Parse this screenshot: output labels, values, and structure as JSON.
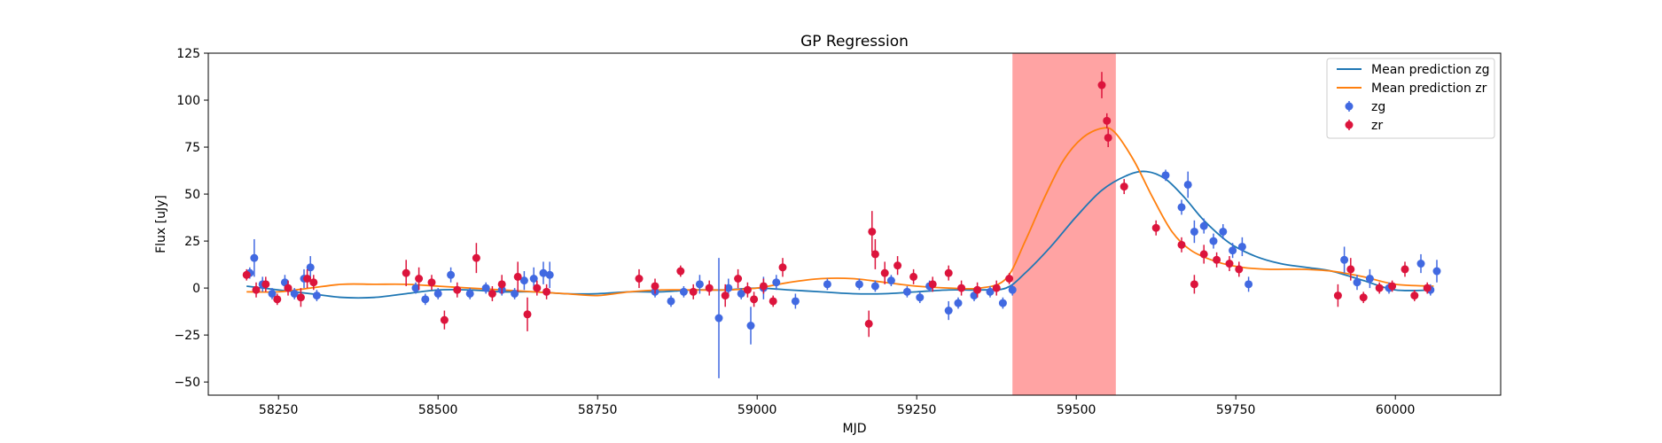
{
  "chart_data": {
    "type": "scatter",
    "title": "GP Regression",
    "xlabel": "MJD",
    "ylabel": "Flux [uJy]",
    "xlim": [
      58140,
      60165
    ],
    "ylim": [
      -57,
      125
    ],
    "xticks": [
      58250,
      58500,
      58750,
      59000,
      59250,
      59500,
      59750,
      60000
    ],
    "yticks": [
      -50,
      -25,
      0,
      25,
      50,
      75,
      100,
      125
    ],
    "grid": false,
    "legend_position": "top-right",
    "highlight_span": {
      "x0": 59400,
      "x1": 59562,
      "color": "#ff6666"
    },
    "lines": [
      {
        "name": "Mean prediction zg",
        "color": "#1f77b4",
        "x": [
          58200,
          58250,
          58300,
          58350,
          58400,
          58450,
          58500,
          58550,
          58600,
          58650,
          58700,
          58750,
          58800,
          58850,
          58900,
          58950,
          59000,
          59050,
          59100,
          59150,
          59200,
          59250,
          59300,
          59350,
          59390,
          59420,
          59460,
          59500,
          59540,
          59580,
          59610,
          59640,
          59670,
          59700,
          59740,
          59780,
          59820,
          59860,
          59900,
          59950,
          60000,
          60060
        ],
        "y": [
          1,
          -1,
          -3,
          -5,
          -5,
          -3,
          -1,
          -1,
          -2,
          -2,
          -3,
          -3,
          -2,
          -2,
          -1,
          -1,
          0,
          -1,
          -2,
          -3,
          -3,
          -2,
          -1,
          -1,
          0,
          8,
          22,
          38,
          52,
          60,
          62,
          58,
          48,
          36,
          24,
          17,
          13,
          11,
          9,
          4,
          -1,
          -1
        ]
      },
      {
        "name": "Mean prediction zr",
        "color": "#ff7f0e",
        "x": [
          58200,
          58250,
          58300,
          58350,
          58400,
          58450,
          58500,
          58550,
          58600,
          58650,
          58700,
          58750,
          58800,
          58850,
          58900,
          58950,
          59000,
          59050,
          59100,
          59150,
          59200,
          59250,
          59300,
          59350,
          59390,
          59420,
          59450,
          59480,
          59510,
          59540,
          59560,
          59590,
          59620,
          59650,
          59680,
          59720,
          59760,
          59800,
          59850,
          59900,
          59950,
          60000,
          60060
        ],
        "y": [
          -2,
          -2,
          0,
          2,
          2,
          2,
          1,
          0,
          -1,
          -2,
          -3,
          -4,
          -2,
          -1,
          -1,
          -1,
          0,
          3,
          5,
          5,
          3,
          1,
          0,
          0,
          5,
          25,
          48,
          68,
          80,
          85,
          83,
          68,
          48,
          30,
          20,
          14,
          11,
          10,
          10,
          9,
          6,
          2,
          1
        ]
      }
    ],
    "series": [
      {
        "name": "zg",
        "color": "#4169e1",
        "x": [
          58205,
          58212,
          58225,
          58240,
          58260,
          58275,
          58290,
          58300,
          58310,
          58465,
          58480,
          58500,
          58520,
          58550,
          58575,
          58600,
          58620,
          58635,
          58650,
          58665,
          58675,
          58840,
          58865,
          58885,
          58910,
          58940,
          58955,
          58975,
          58990,
          59010,
          59030,
          59060,
          59110,
          59160,
          59185,
          59210,
          59235,
          59255,
          59270,
          59300,
          59315,
          59340,
          59365,
          59385,
          59400,
          59640,
          59665,
          59675,
          59685,
          59700,
          59715,
          59730,
          59745,
          59760,
          59770,
          59920,
          59940,
          59960,
          59990,
          60040,
          60055,
          60065
        ],
        "y": [
          8,
          16,
          2,
          -3,
          3,
          -3,
          5,
          11,
          -4,
          0,
          -6,
          -3,
          7,
          -3,
          0,
          -1,
          -3,
          4,
          5,
          8,
          7,
          -2,
          -7,
          -2,
          2,
          -16,
          0,
          -3,
          -20,
          0,
          3,
          -7,
          2,
          2,
          1,
          4,
          -2,
          -5,
          1,
          -12,
          -8,
          -4,
          -2,
          -8,
          -1,
          60,
          43,
          55,
          30,
          33,
          25,
          30,
          20,
          22,
          2,
          15,
          3,
          5,
          0,
          13,
          -1,
          9
        ],
        "err": [
          3,
          10,
          4,
          3,
          4,
          3,
          5,
          6,
          3,
          3,
          3,
          3,
          4,
          3,
          3,
          3,
          3,
          5,
          6,
          6,
          7,
          3,
          3,
          3,
          5,
          32,
          5,
          3,
          10,
          6,
          4,
          4,
          3,
          3,
          3,
          3,
          3,
          3,
          3,
          5,
          3,
          3,
          3,
          3,
          3,
          3,
          4,
          7,
          6,
          4,
          4,
          4,
          4,
          5,
          4,
          7,
          4,
          5,
          3,
          5,
          3,
          6
        ]
      },
      {
        "name": "zr",
        "color": "#dc143c",
        "x": [
          58200,
          58215,
          58230,
          58248,
          58265,
          58285,
          58295,
          58305,
          58450,
          58470,
          58490,
          58510,
          58530,
          58560,
          58585,
          58600,
          58625,
          58640,
          58655,
          58670,
          58815,
          58840,
          58880,
          58900,
          58925,
          58950,
          58970,
          58985,
          58995,
          59010,
          59025,
          59040,
          59175,
          59180,
          59185,
          59200,
          59220,
          59245,
          59275,
          59300,
          59320,
          59345,
          59375,
          59395,
          59540,
          59548,
          59550,
          59575,
          59625,
          59665,
          59685,
          59700,
          59720,
          59740,
          59755,
          59910,
          59930,
          59950,
          59975,
          59995,
          60015,
          60030,
          60050
        ],
        "y": [
          7,
          -1,
          2,
          -6,
          0,
          -5,
          5,
          3,
          8,
          5,
          3,
          -17,
          -1,
          16,
          -3,
          2,
          6,
          -14,
          0,
          -2,
          5,
          1,
          9,
          -2,
          0,
          -4,
          5,
          -1,
          -6,
          1,
          -7,
          11,
          -19,
          30,
          18,
          8,
          12,
          6,
          2,
          8,
          0,
          -1,
          0,
          5,
          108,
          89,
          80,
          54,
          32,
          23,
          2,
          18,
          15,
          13,
          10,
          -4,
          10,
          -5,
          0,
          1,
          10,
          -4,
          0
        ],
        "err": [
          3,
          4,
          4,
          3,
          4,
          5,
          5,
          4,
          7,
          6,
          4,
          5,
          4,
          8,
          4,
          5,
          8,
          9,
          4,
          4,
          5,
          4,
          3,
          4,
          4,
          6,
          5,
          4,
          4,
          4,
          3,
          5,
          7,
          11,
          8,
          6,
          5,
          4,
          4,
          4,
          4,
          4,
          4,
          3,
          7,
          4,
          5,
          4,
          4,
          4,
          5,
          5,
          4,
          4,
          4,
          6,
          6,
          3,
          3,
          3,
          4,
          3,
          3
        ]
      }
    ]
  }
}
